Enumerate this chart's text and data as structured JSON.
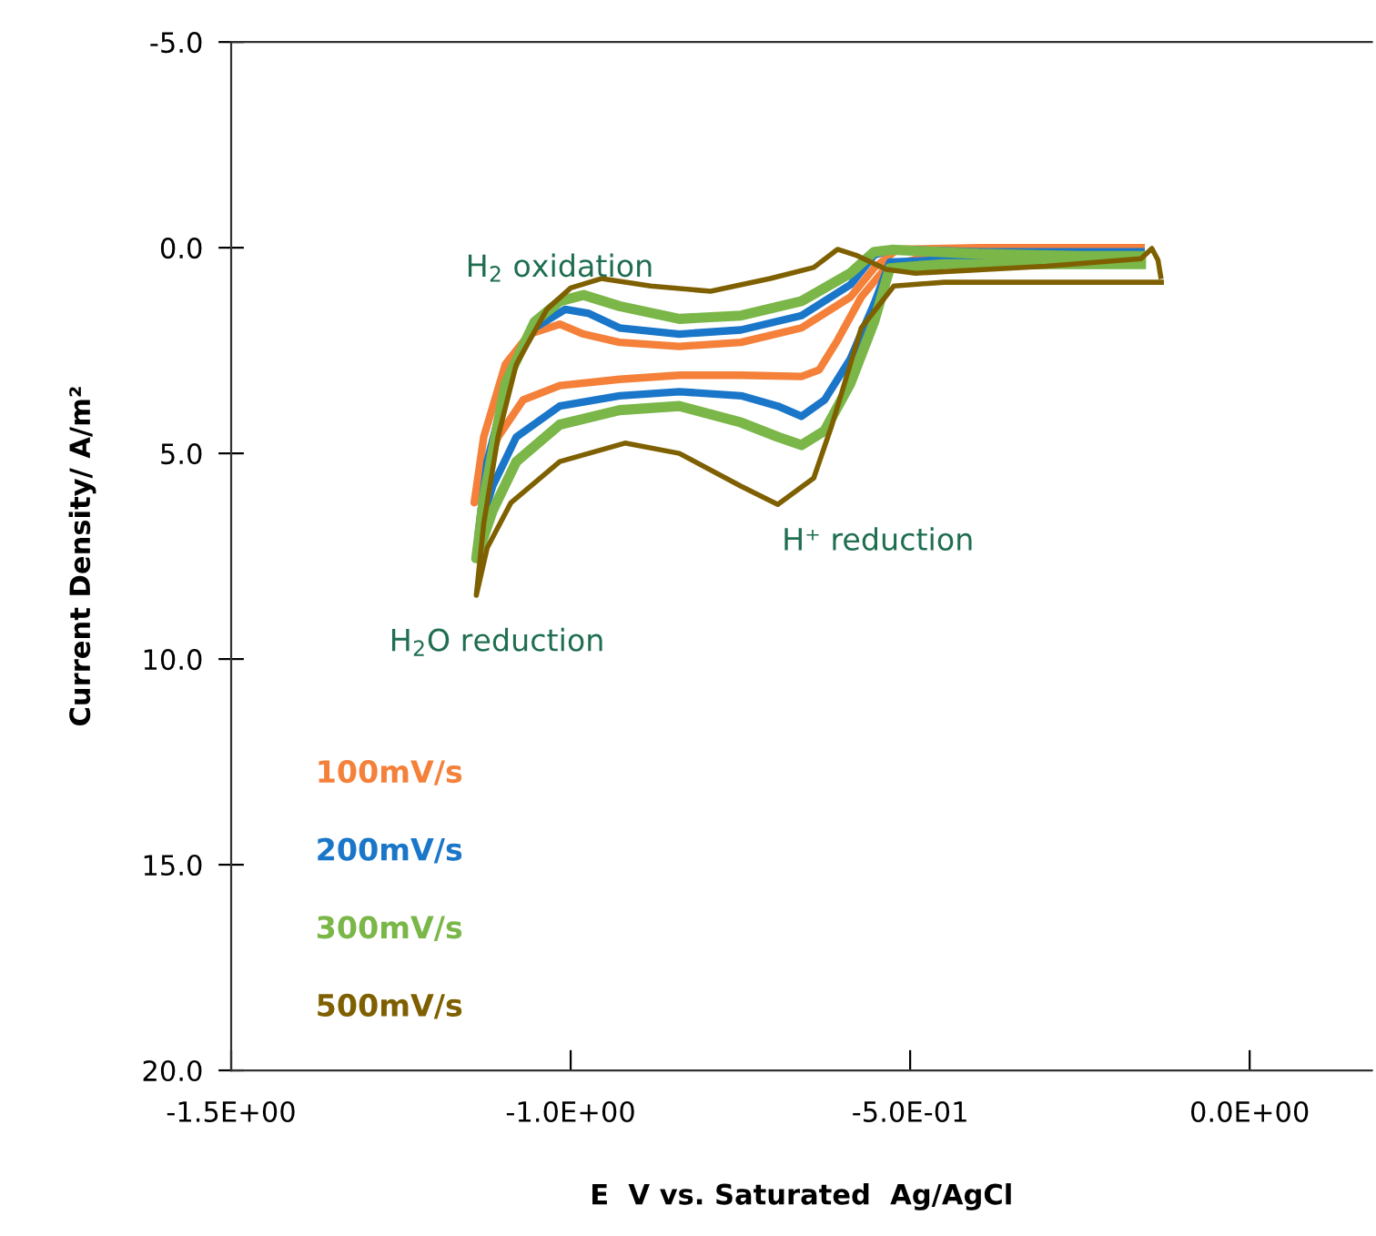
{
  "chart_data": {
    "type": "line",
    "xlabel": "E  V vs. Saturated  Ag/AgCl",
    "ylabel": "Current Density/ A/m²",
    "xlim": [
      -1.5,
      0.18
    ],
    "ylim": [
      20,
      -5
    ],
    "xticks": [
      {
        "value": -1.5,
        "label": "-1.5E+00"
      },
      {
        "value": -1.0,
        "label": "-1.0E+00"
      },
      {
        "value": -0.5,
        "label": "-5.0E-01"
      },
      {
        "value": 0,
        "label": "0.0E+00"
      }
    ],
    "yticks": [
      {
        "value": -5,
        "label": "-5.0"
      },
      {
        "value": 0,
        "label": "0.0"
      },
      {
        "value": 5,
        "label": "5.0"
      },
      {
        "value": 10,
        "label": "10.0"
      },
      {
        "value": 15,
        "label": "15.0"
      },
      {
        "value": 20,
        "label": "20.0"
      }
    ],
    "grid": false,
    "legend": "bottom left",
    "marker": "none",
    "line_style": "solid",
    "annotations": [
      "H$_{2}$ oxidation",
      "H⁺ reduction",
      "H$_{2}$O reduction"
    ],
    "series": [
      {
        "name": "100mV/s",
        "color": "#f4803a",
        "x": [
          -0.16,
          -0.3,
          -0.45,
          -0.535,
          -0.572,
          -0.607,
          -0.634,
          -0.66,
          -0.749,
          -0.84,
          -0.928,
          -1.016,
          -1.07,
          -1.107,
          -1.134,
          -1.142,
          -1.128,
          -1.096,
          -1.061,
          -1.016,
          -0.981,
          -0.928,
          -0.84,
          -0.749,
          -0.66,
          -0.588,
          -0.553,
          -0.519,
          -0.4,
          -0.25,
          -0.16
        ],
        "values": [
          0.15,
          0.1,
          0.1,
          0.47,
          1.2,
          2.25,
          2.97,
          3.13,
          3.1,
          3.1,
          3.2,
          3.35,
          3.7,
          4.6,
          5.8,
          6.2,
          4.6,
          2.83,
          2.1,
          1.86,
          2.1,
          2.3,
          2.4,
          2.3,
          1.95,
          1.2,
          0.49,
          0.04,
          0.0,
          0.0,
          0.0
        ]
      },
      {
        "name": "200mV/s",
        "color": "#1a76c8",
        "x": [
          -0.16,
          -0.3,
          -0.45,
          -0.53,
          -0.553,
          -0.588,
          -0.626,
          -0.66,
          -0.695,
          -0.749,
          -0.84,
          -0.928,
          -1.016,
          -1.08,
          -1.115,
          -1.136,
          -1.123,
          -1.088,
          -1.053,
          -1.008,
          -0.973,
          -0.928,
          -0.84,
          -0.749,
          -0.66,
          -0.588,
          -0.553,
          -0.527,
          -0.4,
          -0.25,
          -0.16
        ],
        "values": [
          0.3,
          0.3,
          0.3,
          0.35,
          1.36,
          2.7,
          3.7,
          4.1,
          3.85,
          3.6,
          3.5,
          3.6,
          3.85,
          4.6,
          5.8,
          6.95,
          5.2,
          2.97,
          1.95,
          1.5,
          1.6,
          1.95,
          2.1,
          2.0,
          1.65,
          0.9,
          0.18,
          0.04,
          0.1,
          0.1,
          0.1
        ]
      },
      {
        "name": "300mV/s",
        "color": "#7ab648",
        "x": [
          -0.16,
          -0.3,
          -0.45,
          -0.53,
          -0.553,
          -0.588,
          -0.626,
          -0.66,
          -0.695,
          -0.749,
          -0.84,
          -0.928,
          -1.016,
          -1.08,
          -1.115,
          -1.139,
          -1.128,
          -1.096,
          -1.053,
          -1.016,
          -0.981,
          -0.928,
          -0.84,
          -0.749,
          -0.66,
          -0.588,
          -0.553,
          -0.527,
          -0.4,
          -0.25,
          -0.16
        ],
        "values": [
          0.4,
          0.4,
          0.4,
          0.5,
          1.8,
          3.3,
          4.45,
          4.8,
          4.6,
          4.25,
          3.85,
          3.95,
          4.3,
          5.2,
          6.4,
          7.55,
          6.1,
          3.3,
          1.8,
          1.3,
          1.15,
          1.42,
          1.73,
          1.65,
          1.3,
          0.62,
          0.1,
          0.05,
          0.15,
          0.2,
          0.2
        ]
      },
      {
        "name": "500mV/s",
        "color": "#7f6000",
        "x": [
          -0.13,
          -0.3,
          -0.45,
          -0.524,
          -0.572,
          -0.615,
          -0.642,
          -0.695,
          -0.749,
          -0.84,
          -0.92,
          -1.016,
          -1.088,
          -1.123,
          -1.139,
          -1.128,
          -1.107,
          -1.08,
          -1.035,
          -1.0,
          -0.955,
          -0.882,
          -0.794,
          -0.706,
          -0.642,
          -0.607,
          -0.58,
          -0.535,
          -0.492,
          -0.3,
          -0.16,
          -0.144,
          -0.135,
          -0.131
        ],
        "values": [
          0.84,
          0.84,
          0.84,
          0.93,
          1.95,
          4.3,
          5.6,
          6.24,
          5.8,
          5.0,
          4.75,
          5.2,
          6.2,
          7.3,
          8.45,
          6.7,
          4.6,
          2.83,
          1.5,
          0.98,
          0.75,
          0.93,
          1.06,
          0.75,
          0.48,
          0.04,
          0.18,
          0.53,
          0.62,
          0.45,
          0.27,
          0.02,
          0.3,
          0.7
        ]
      }
    ]
  }
}
